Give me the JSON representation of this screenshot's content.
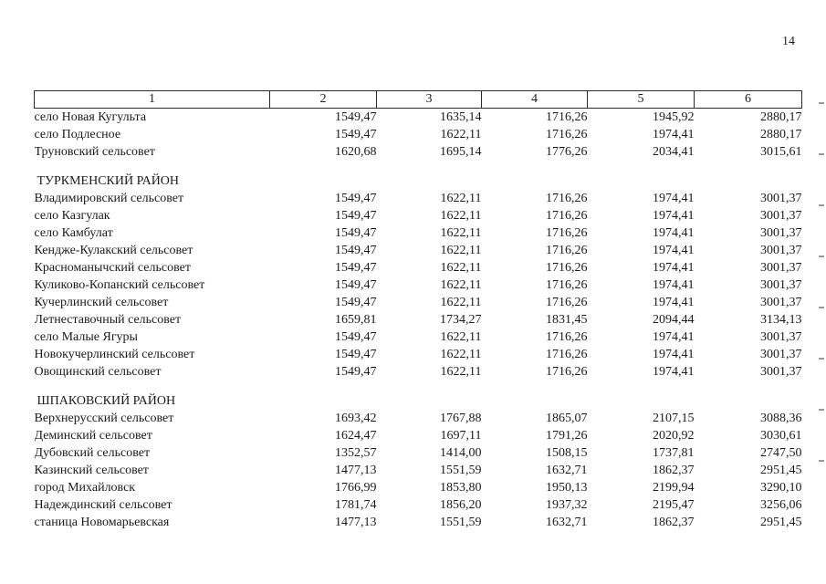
{
  "page": {
    "number": "14"
  },
  "table": {
    "headers": [
      "1",
      "2",
      "3",
      "4",
      "5",
      "6"
    ],
    "rows": [
      {
        "type": "data",
        "name": "село Новая Кугульта",
        "values": [
          "1549,47",
          "1635,14",
          "1716,26",
          "1945,92",
          "2880,17"
        ]
      },
      {
        "type": "data",
        "name": "село Подлесное",
        "values": [
          "1549,47",
          "1622,11",
          "1716,26",
          "1974,41",
          "2880,17"
        ]
      },
      {
        "type": "data",
        "name": "Труновский сельсовет",
        "values": [
          "1620,68",
          "1695,14",
          "1776,26",
          "2034,41",
          "3015,61"
        ]
      },
      {
        "type": "spacer"
      },
      {
        "type": "section",
        "name": "ТУРКМЕНСКИЙ РАЙОН"
      },
      {
        "type": "data",
        "name": "Владимировский сельсовет",
        "values": [
          "1549,47",
          "1622,11",
          "1716,26",
          "1974,41",
          "3001,37"
        ]
      },
      {
        "type": "data",
        "name": "село Казгулак",
        "values": [
          "1549,47",
          "1622,11",
          "1716,26",
          "1974,41",
          "3001,37"
        ]
      },
      {
        "type": "data",
        "name": "село Камбулат",
        "values": [
          "1549,47",
          "1622,11",
          "1716,26",
          "1974,41",
          "3001,37"
        ]
      },
      {
        "type": "data",
        "name": "Кендже-Кулакский сельсовет",
        "values": [
          "1549,47",
          "1622,11",
          "1716,26",
          "1974,41",
          "3001,37"
        ]
      },
      {
        "type": "data",
        "name": "Красноманычский сельсовет",
        "values": [
          "1549,47",
          "1622,11",
          "1716,26",
          "1974,41",
          "3001,37"
        ]
      },
      {
        "type": "data",
        "name": "Куликово-Копанский сельсовет",
        "values": [
          "1549,47",
          "1622,11",
          "1716,26",
          "1974,41",
          "3001,37"
        ]
      },
      {
        "type": "data",
        "name": "Кучерлинский сельсовет",
        "values": [
          "1549,47",
          "1622,11",
          "1716,26",
          "1974,41",
          "3001,37"
        ]
      },
      {
        "type": "data",
        "name": "Летнеставочный сельсовет",
        "values": [
          "1659,81",
          "1734,27",
          "1831,45",
          "2094,44",
          "3134,13"
        ]
      },
      {
        "type": "data",
        "name": "село Малые Ягуры",
        "values": [
          "1549,47",
          "1622,11",
          "1716,26",
          "1974,41",
          "3001,37"
        ]
      },
      {
        "type": "data",
        "name": "Новокучерлинский сельсовет",
        "values": [
          "1549,47",
          "1622,11",
          "1716,26",
          "1974,41",
          "3001,37"
        ]
      },
      {
        "type": "data",
        "name": "Овощинский сельсовет",
        "values": [
          "1549,47",
          "1622,11",
          "1716,26",
          "1974,41",
          "3001,37"
        ]
      },
      {
        "type": "spacer"
      },
      {
        "type": "section",
        "name": "ШПАКОВСКИЙ РАЙОН"
      },
      {
        "type": "data",
        "name": "Верхнерусский сельсовет",
        "values": [
          "1693,42",
          "1767,88",
          "1865,07",
          "2107,15",
          "3088,36"
        ]
      },
      {
        "type": "data",
        "name": "Деминский сельсовет",
        "values": [
          "1624,47",
          "1697,11",
          "1791,26",
          "2020,92",
          "3030,61"
        ]
      },
      {
        "type": "data",
        "name": "Дубовский сельсовет",
        "values": [
          "1352,57",
          "1414,00",
          "1508,15",
          "1737,81",
          "2747,50"
        ]
      },
      {
        "type": "data",
        "name": "Казинский сельсовет",
        "values": [
          "1477,13",
          "1551,59",
          "1632,71",
          "1862,37",
          "2951,45"
        ]
      },
      {
        "type": "data",
        "name": "город Михайловск",
        "values": [
          "1766,99",
          "1853,80",
          "1950,13",
          "2199,94",
          "3290,10"
        ]
      },
      {
        "type": "data",
        "name": "Надеждинский сельсовет",
        "values": [
          "1781,74",
          "1856,20",
          "1937,32",
          "2195,47",
          "3256,06"
        ]
      },
      {
        "type": "data",
        "name": "станица Новомарьевская",
        "values": [
          "1477,13",
          "1551,59",
          "1632,71",
          "1862,37",
          "2951,45"
        ]
      }
    ]
  }
}
